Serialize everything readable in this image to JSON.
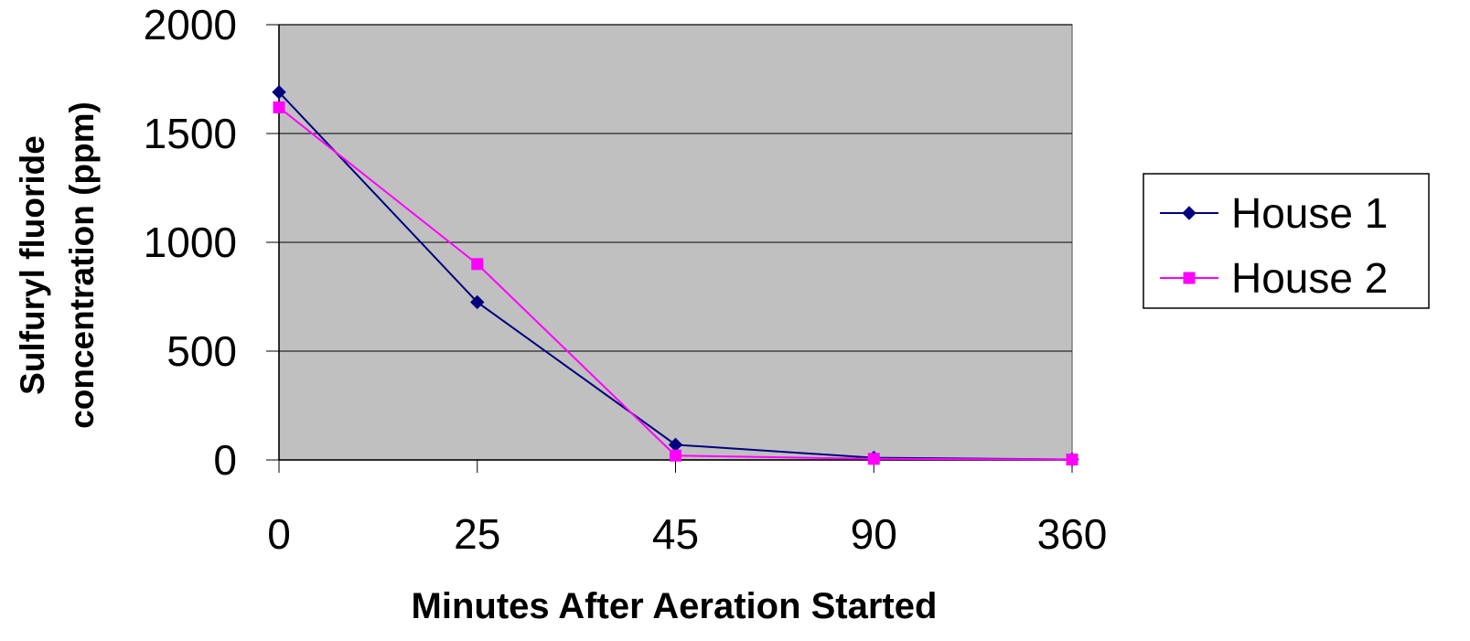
{
  "chart_data": {
    "type": "line",
    "title": "",
    "xlabel": "Minutes After Aeration Started",
    "ylabel_lines": [
      "Sulfuryl fluoride",
      "concentration (ppm)"
    ],
    "categories": [
      "0",
      "25",
      "45",
      "90",
      "360"
    ],
    "ylim": [
      0,
      2000
    ],
    "yticks": [
      "0",
      "500",
      "1000",
      "1500",
      "2000"
    ],
    "ytick_values": [
      0,
      500,
      1000,
      1500,
      2000
    ],
    "grid": true,
    "plot_background": "#c0c0c0",
    "legend_position": "right",
    "series": [
      {
        "name": "House 1",
        "values": [
          1690,
          725,
          70,
          10,
          2
        ],
        "color": "#000080",
        "marker": "diamond"
      },
      {
        "name": "House 2",
        "values": [
          1620,
          900,
          20,
          5,
          2
        ],
        "color": "#ff00ff",
        "marker": "square"
      }
    ]
  }
}
